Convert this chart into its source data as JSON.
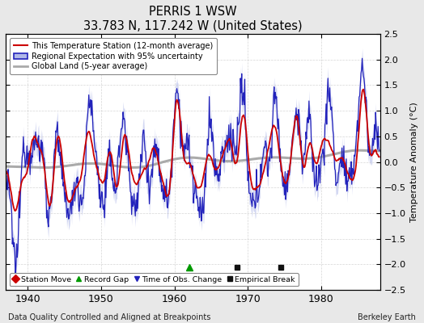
{
  "title": "PERRIS 1 WSW",
  "subtitle": "33.783 N, 117.242 W (United States)",
  "ylabel": "Temperature Anomaly (°C)",
  "xlabel_note": "Data Quality Controlled and Aligned at Breakpoints",
  "credit": "Berkeley Earth",
  "xlim": [
    1937,
    1988
  ],
  "ylim": [
    -2.5,
    2.5
  ],
  "yticks": [
    -2.5,
    -2,
    -1.5,
    -1,
    -0.5,
    0,
    0.5,
    1,
    1.5,
    2,
    2.5
  ],
  "xticks": [
    1940,
    1950,
    1960,
    1970,
    1980
  ],
  "bg_color": "#e8e8e8",
  "plot_bg_color": "#ffffff",
  "legend_items": [
    {
      "label": "This Temperature Station (12-month average)",
      "color": "#cc0000",
      "lw": 1.5
    },
    {
      "label": "Regional Expectation with 95% uncertainty",
      "color": "#3333cc",
      "lw": 1.5
    },
    {
      "label": "Global Land (5-year average)",
      "color": "#aaaaaa",
      "lw": 2.0
    }
  ],
  "marker_items": [
    {
      "label": "Station Move",
      "marker": "D",
      "color": "#cc0000"
    },
    {
      "label": "Record Gap",
      "marker": "^",
      "color": "#009900"
    },
    {
      "label": "Time of Obs. Change",
      "marker": "v",
      "color": "#3333cc"
    },
    {
      "label": "Empirical Break",
      "marker": "s",
      "color": "#333333"
    }
  ],
  "station_move_years": [],
  "record_gap_years": [
    1962.0
  ],
  "tobs_change_years": [],
  "empirical_break_years": [
    1968.5,
    1974.5
  ],
  "figsize": [
    5.24,
    4.0
  ],
  "dpi": 100
}
